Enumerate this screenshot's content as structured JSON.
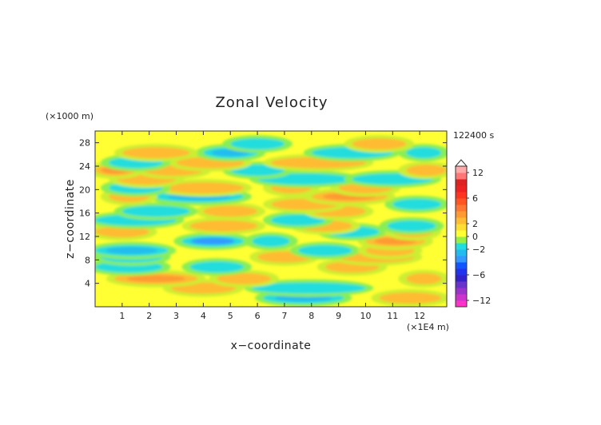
{
  "chart_data": {
    "type": "heatmap",
    "title": "Zonal Velocity",
    "time_label": "122400 s",
    "xlabel": "x−coordinate",
    "ylabel": "z−coordinate",
    "x_unit": "(×1E4 m)",
    "y_unit": "(×1000 m)",
    "xlim": [
      0,
      13
    ],
    "ylim": [
      0,
      30
    ],
    "xticks": [
      "1",
      "2",
      "3",
      "4",
      "5",
      "6",
      "7",
      "8",
      "9",
      "10",
      "11",
      "12"
    ],
    "yticks": [
      "4",
      "8",
      "12",
      "16",
      "20",
      "24",
      "28"
    ],
    "colorbar": {
      "labels": [
        "12",
        "6",
        "2",
        "0",
        "−2",
        "−6",
        "−12"
      ],
      "levels": [
        -14,
        -12,
        -10,
        -8,
        -7,
        -6,
        -5,
        -4,
        -3,
        -2,
        -1,
        0,
        1,
        2,
        3,
        4,
        5,
        6,
        7,
        8,
        10,
        12,
        14
      ],
      "colors": [
        "#ff33cc",
        "#cc33cc",
        "#9933cc",
        "#6633cc",
        "#3322cc",
        "#2233ee",
        "#1155ff",
        "#3399ff",
        "#22bbee",
        "#22dddd",
        "#99ee44",
        "#ffff33",
        "#ffdd33",
        "#ffbb33",
        "#ff9933",
        "#ff7733",
        "#ff5522",
        "#ff3322",
        "#ee2222",
        "#dd2222",
        "#ff7777",
        "#ffaaaa"
      ]
    },
    "bands": [
      {
        "z": 1.5,
        "segments": [
          [
            6.2,
            9.2,
            -2.5
          ],
          [
            10.5,
            12.8,
            1.2
          ]
        ]
      },
      {
        "z": 3.2,
        "segments": [
          [
            5.8,
            10,
            -1.6
          ],
          [
            2.8,
            5.2,
            1.5
          ]
        ]
      },
      {
        "z": 4.8,
        "segments": [
          [
            0.7,
            3.8,
            3.2
          ],
          [
            11.5,
            12.8,
            2.5
          ],
          [
            4.5,
            6.5,
            1.2
          ]
        ]
      },
      {
        "z": 6.8,
        "segments": [
          [
            0,
            2.5,
            -1.5
          ],
          [
            3.5,
            5.5,
            -1.2
          ],
          [
            8.5,
            10.5,
            1.2
          ]
        ]
      },
      {
        "z": 8.5,
        "segments": [
          [
            6,
            8,
            1.5
          ],
          [
            9,
            11.8,
            2.5
          ],
          [
            0.2,
            2.5,
            -1.2
          ]
        ]
      },
      {
        "z": 9.6,
        "segments": [
          [
            0,
            2.7,
            -2.5
          ],
          [
            7.5,
            9.5,
            -1.2
          ],
          [
            10,
            11.8,
            2.2
          ]
        ]
      },
      {
        "z": 11.2,
        "segments": [
          [
            3.2,
            5.5,
            -3.5
          ],
          [
            10,
            12.2,
            3.0
          ],
          [
            5.8,
            7.2,
            -1.2
          ]
        ]
      },
      {
        "z": 12.8,
        "segments": [
          [
            0,
            2,
            1.2
          ],
          [
            8.5,
            10.5,
            -1.2
          ],
          [
            11,
            12.5,
            1.5
          ]
        ]
      },
      {
        "z": 13.8,
        "segments": [
          [
            3.5,
            6,
            2.2
          ],
          [
            7.5,
            9.5,
            1.5
          ],
          [
            10.8,
            12.6,
            -1.8
          ]
        ]
      },
      {
        "z": 14.8,
        "segments": [
          [
            0,
            3,
            -1.2
          ],
          [
            6.5,
            8.5,
            -1.5
          ]
        ]
      },
      {
        "z": 16.3,
        "segments": [
          [
            4,
            6,
            2.2
          ],
          [
            8,
            10,
            1.2
          ],
          [
            1,
            3.5,
            -1.2
          ]
        ]
      },
      {
        "z": 17.5,
        "segments": [
          [
            6.5,
            9,
            1.8
          ],
          [
            11,
            12.8,
            -1.4
          ]
        ]
      },
      {
        "z": 18.8,
        "segments": [
          [
            2.2,
            5.5,
            -2.2
          ],
          [
            8,
            10.8,
            3.0
          ],
          [
            0.5,
            2,
            1.2
          ]
        ]
      },
      {
        "z": 20.3,
        "segments": [
          [
            2.5,
            5.5,
            2.2
          ],
          [
            0.5,
            2.5,
            -1.5
          ],
          [
            6.5,
            8,
            1.5
          ],
          [
            9,
            11,
            1.2
          ]
        ]
      },
      {
        "z": 21.8,
        "segments": [
          [
            0.8,
            3,
            1.8
          ],
          [
            6,
            9.5,
            -1.6
          ],
          [
            9.5,
            12.5,
            -1.3
          ]
        ]
      },
      {
        "z": 23.3,
        "segments": [
          [
            0,
            1.5,
            3.0
          ],
          [
            1.8,
            4,
            1.5
          ],
          [
            11.5,
            13,
            2.5
          ],
          [
            5,
            7,
            -1.2
          ]
        ]
      },
      {
        "z": 24.6,
        "segments": [
          [
            3,
            5.5,
            1.5
          ],
          [
            6.5,
            10,
            1.2
          ],
          [
            0.5,
            2.5,
            -1.4
          ]
        ]
      },
      {
        "z": 26.3,
        "segments": [
          [
            4,
            6,
            -2.2
          ],
          [
            1,
            3.5,
            1.2
          ],
          [
            8,
            11,
            -1.2
          ],
          [
            11.5,
            12.8,
            -1.5
          ]
        ]
      },
      {
        "z": 27.8,
        "segments": [
          [
            9.5,
            11.5,
            1.5
          ],
          [
            5,
            7,
            -1.2
          ]
        ]
      }
    ]
  }
}
